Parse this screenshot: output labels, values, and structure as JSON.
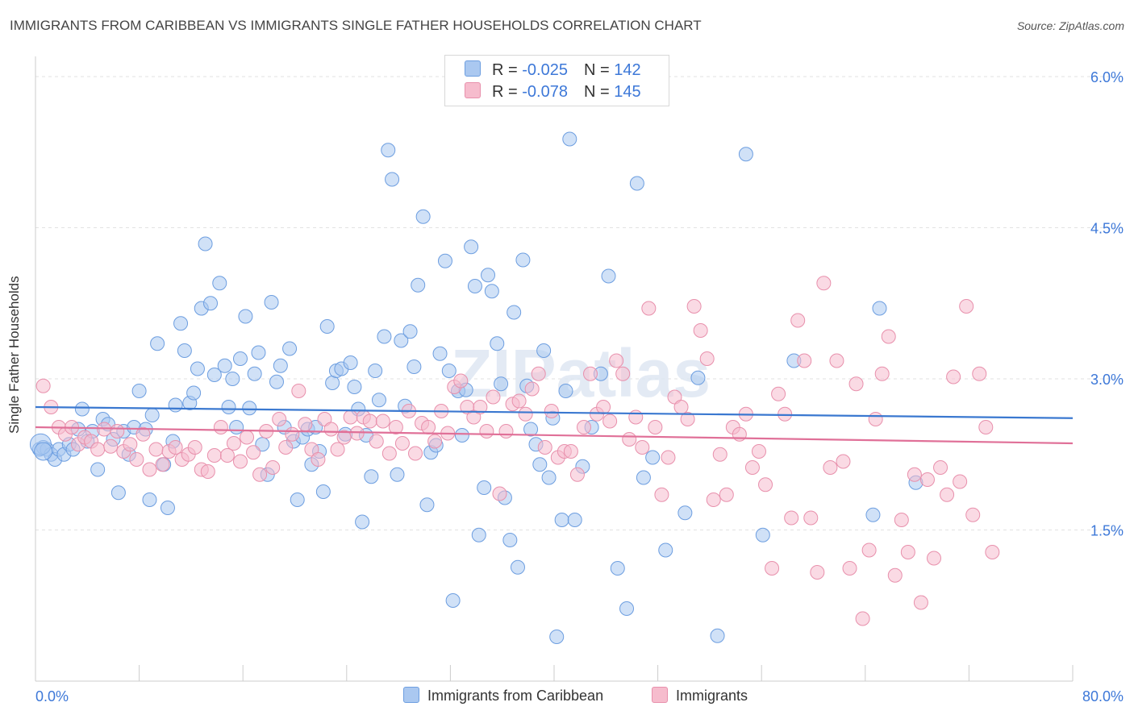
{
  "title": "IMMIGRANTS FROM CARIBBEAN VS IMMIGRANTS SINGLE FATHER HOUSEHOLDS CORRELATION CHART",
  "source": "Source: ZipAtlas.com",
  "watermark": "ZIPatlas",
  "legend_top": [
    {
      "r_label": "R = ",
      "r_value": "-0.025",
      "n_label": "N = ",
      "n_value": "142"
    },
    {
      "r_label": "R = ",
      "r_value": "-0.078",
      "n_label": "N = ",
      "n_value": "145"
    }
  ],
  "legend_bottom": [
    "Immigrants from Caribbean",
    "Immigrants"
  ],
  "colors": {
    "blue_fill": "#aac8f0",
    "blue_stroke": "#6d9ee0",
    "blue_line": "#3a78d0",
    "pink_fill": "#f6bccd",
    "pink_stroke": "#e890ac",
    "pink_line": "#e07098",
    "axis_text": "#3d78d8"
  },
  "chart_data": {
    "type": "scatter",
    "title": "IMMIGRANTS FROM CARIBBEAN VS IMMIGRANTS SINGLE FATHER HOUSEHOLDS CORRELATION CHART",
    "ylabel": "Single Father Households",
    "xlabel": "",
    "xlim": [
      0,
      80
    ],
    "ylim": [
      0,
      6.2
    ],
    "x_tick_labels": [
      "0.0%",
      "80.0%"
    ],
    "y_ticks": [
      {
        "value": 1.5,
        "label": "1.5%"
      },
      {
        "value": 3.0,
        "label": "3.0%"
      },
      {
        "value": 4.5,
        "label": "4.5%"
      },
      {
        "value": 6.0,
        "label": "6.0%"
      }
    ],
    "series": [
      {
        "name": "Immigrants from Caribbean",
        "trend": {
          "x0": 0,
          "y0": 2.72,
          "x1": 80,
          "y1": 2.61
        },
        "points": [
          [
            0.3,
            2.3
          ],
          [
            0.6,
            2.32
          ],
          [
            0.9,
            2.3
          ],
          [
            1.2,
            2.25
          ],
          [
            1.5,
            2.2
          ],
          [
            1.8,
            2.3
          ],
          [
            2.2,
            2.25
          ],
          [
            2.6,
            2.35
          ],
          [
            2.9,
            2.3
          ],
          [
            3.3,
            2.5
          ],
          [
            3.6,
            2.7
          ],
          [
            4.0,
            2.38
          ],
          [
            4.4,
            2.48
          ],
          [
            4.8,
            2.1
          ],
          [
            5.2,
            2.6
          ],
          [
            5.6,
            2.55
          ],
          [
            6.0,
            2.4
          ],
          [
            6.4,
            1.87
          ],
          [
            6.8,
            2.48
          ],
          [
            7.2,
            2.25
          ],
          [
            7.6,
            2.52
          ],
          [
            8.0,
            2.88
          ],
          [
            8.5,
            2.5
          ],
          [
            8.8,
            1.8
          ],
          [
            9.0,
            2.64
          ],
          [
            9.4,
            3.35
          ],
          [
            9.9,
            2.15
          ],
          [
            10.2,
            1.72
          ],
          [
            10.6,
            2.38
          ],
          [
            10.8,
            2.74
          ],
          [
            11.2,
            3.55
          ],
          [
            11.5,
            3.28
          ],
          [
            11.9,
            2.76
          ],
          [
            12.2,
            2.86
          ],
          [
            12.5,
            3.1
          ],
          [
            12.8,
            3.7
          ],
          [
            13.1,
            4.34
          ],
          [
            13.5,
            3.75
          ],
          [
            13.8,
            3.04
          ],
          [
            14.2,
            3.95
          ],
          [
            14.6,
            3.13
          ],
          [
            14.9,
            2.72
          ],
          [
            15.2,
            3.0
          ],
          [
            15.5,
            2.52
          ],
          [
            15.8,
            3.2
          ],
          [
            16.2,
            3.62
          ],
          [
            16.5,
            2.71
          ],
          [
            16.9,
            3.05
          ],
          [
            17.2,
            3.26
          ],
          [
            17.5,
            2.35
          ],
          [
            17.9,
            2.05
          ],
          [
            18.2,
            3.76
          ],
          [
            18.6,
            2.97
          ],
          [
            18.9,
            3.13
          ],
          [
            19.2,
            2.52
          ],
          [
            19.6,
            3.3
          ],
          [
            19.9,
            2.38
          ],
          [
            20.2,
            1.8
          ],
          [
            20.6,
            2.42
          ],
          [
            21.0,
            2.5
          ],
          [
            21.3,
            2.15
          ],
          [
            21.6,
            2.52
          ],
          [
            21.9,
            2.28
          ],
          [
            22.2,
            1.88
          ],
          [
            22.5,
            3.52
          ],
          [
            22.9,
            2.96
          ],
          [
            23.2,
            3.08
          ],
          [
            23.6,
            3.1
          ],
          [
            23.9,
            2.45
          ],
          [
            24.3,
            3.16
          ],
          [
            24.6,
            2.92
          ],
          [
            24.9,
            2.7
          ],
          [
            25.2,
            1.58
          ],
          [
            25.5,
            2.44
          ],
          [
            25.9,
            2.03
          ],
          [
            26.2,
            3.08
          ],
          [
            26.5,
            2.79
          ],
          [
            26.9,
            3.42
          ],
          [
            27.2,
            5.27
          ],
          [
            27.5,
            4.98
          ],
          [
            27.9,
            2.05
          ],
          [
            28.2,
            3.38
          ],
          [
            28.5,
            2.73
          ],
          [
            28.9,
            3.47
          ],
          [
            29.2,
            3.12
          ],
          [
            29.5,
            3.93
          ],
          [
            29.9,
            4.61
          ],
          [
            30.2,
            1.75
          ],
          [
            30.5,
            2.27
          ],
          [
            30.9,
            2.34
          ],
          [
            31.2,
            3.25
          ],
          [
            31.6,
            4.17
          ],
          [
            31.9,
            3.08
          ],
          [
            32.2,
            0.8
          ],
          [
            32.6,
            2.88
          ],
          [
            32.9,
            2.44
          ],
          [
            33.2,
            2.89
          ],
          [
            33.6,
            4.31
          ],
          [
            33.9,
            3.92
          ],
          [
            34.2,
            1.45
          ],
          [
            34.6,
            1.92
          ],
          [
            34.9,
            4.03
          ],
          [
            35.2,
            3.87
          ],
          [
            35.6,
            3.35
          ],
          [
            35.9,
            2.95
          ],
          [
            36.2,
            1.82
          ],
          [
            36.6,
            1.4
          ],
          [
            36.9,
            3.66
          ],
          [
            37.2,
            1.13
          ],
          [
            37.6,
            4.18
          ],
          [
            37.9,
            2.93
          ],
          [
            38.2,
            2.5
          ],
          [
            38.6,
            2.35
          ],
          [
            38.9,
            2.15
          ],
          [
            39.2,
            3.28
          ],
          [
            39.6,
            2.02
          ],
          [
            39.9,
            2.61
          ],
          [
            40.2,
            0.44
          ],
          [
            40.6,
            1.6
          ],
          [
            40.9,
            2.88
          ],
          [
            41.2,
            5.38
          ],
          [
            41.6,
            1.6
          ],
          [
            42.2,
            2.13
          ],
          [
            42.9,
            2.52
          ],
          [
            43.6,
            3.05
          ],
          [
            44.2,
            4.02
          ],
          [
            44.9,
            1.12
          ],
          [
            45.6,
            0.72
          ],
          [
            46.4,
            4.94
          ],
          [
            46.9,
            2.02
          ],
          [
            47.6,
            2.22
          ],
          [
            48.6,
            1.3
          ],
          [
            50.1,
            1.67
          ],
          [
            51.1,
            3.01
          ],
          [
            52.6,
            0.45
          ],
          [
            54.8,
            5.23
          ],
          [
            56.1,
            1.45
          ],
          [
            58.5,
            3.18
          ],
          [
            64.6,
            1.65
          ],
          [
            65.1,
            3.7
          ],
          [
            67.9,
            1.97
          ]
        ]
      },
      {
        "name": "Immigrants",
        "trend": {
          "x0": 0,
          "y0": 2.52,
          "x1": 80,
          "y1": 2.36
        },
        "points": [
          [
            0.6,
            2.93
          ],
          [
            1.2,
            2.72
          ],
          [
            1.8,
            2.52
          ],
          [
            2.3,
            2.45
          ],
          [
            2.8,
            2.52
          ],
          [
            3.3,
            2.35
          ],
          [
            3.8,
            2.42
          ],
          [
            4.3,
            2.38
          ],
          [
            4.8,
            2.3
          ],
          [
            5.3,
            2.5
          ],
          [
            5.8,
            2.33
          ],
          [
            6.3,
            2.48
          ],
          [
            6.8,
            2.28
          ],
          [
            7.3,
            2.35
          ],
          [
            7.8,
            2.2
          ],
          [
            8.3,
            2.45
          ],
          [
            8.8,
            2.1
          ],
          [
            9.3,
            2.3
          ],
          [
            9.8,
            2.15
          ],
          [
            10.3,
            2.28
          ],
          [
            10.8,
            2.32
          ],
          [
            11.3,
            2.2
          ],
          [
            11.8,
            2.25
          ],
          [
            12.3,
            2.32
          ],
          [
            12.8,
            2.1
          ],
          [
            13.3,
            2.08
          ],
          [
            13.8,
            2.24
          ],
          [
            14.3,
            2.52
          ],
          [
            14.8,
            2.24
          ],
          [
            15.3,
            2.36
          ],
          [
            15.8,
            2.18
          ],
          [
            16.3,
            2.42
          ],
          [
            16.8,
            2.27
          ],
          [
            17.3,
            2.05
          ],
          [
            17.8,
            2.48
          ],
          [
            18.3,
            2.12
          ],
          [
            18.8,
            2.6
          ],
          [
            19.3,
            2.32
          ],
          [
            19.8,
            2.45
          ],
          [
            20.3,
            2.88
          ],
          [
            20.8,
            2.55
          ],
          [
            21.3,
            2.3
          ],
          [
            21.8,
            2.2
          ],
          [
            22.3,
            2.6
          ],
          [
            22.8,
            2.5
          ],
          [
            23.3,
            2.3
          ],
          [
            23.8,
            2.42
          ],
          [
            24.3,
            2.62
          ],
          [
            24.8,
            2.46
          ],
          [
            25.3,
            2.62
          ],
          [
            25.8,
            2.58
          ],
          [
            26.3,
            2.38
          ],
          [
            26.8,
            2.58
          ],
          [
            27.3,
            2.26
          ],
          [
            27.8,
            2.52
          ],
          [
            28.3,
            2.36
          ],
          [
            28.8,
            2.68
          ],
          [
            29.3,
            2.26
          ],
          [
            29.8,
            2.56
          ],
          [
            30.3,
            2.52
          ],
          [
            30.8,
            2.38
          ],
          [
            31.3,
            2.68
          ],
          [
            31.8,
            2.46
          ],
          [
            32.3,
            2.92
          ],
          [
            32.8,
            2.98
          ],
          [
            33.3,
            2.72
          ],
          [
            33.8,
            2.62
          ],
          [
            34.3,
            2.72
          ],
          [
            34.8,
            2.48
          ],
          [
            35.3,
            2.82
          ],
          [
            35.8,
            1.86
          ],
          [
            36.3,
            2.48
          ],
          [
            36.8,
            2.75
          ],
          [
            37.3,
            2.78
          ],
          [
            37.8,
            2.65
          ],
          [
            38.3,
            2.9
          ],
          [
            38.8,
            3.05
          ],
          [
            39.3,
            2.32
          ],
          [
            39.8,
            2.68
          ],
          [
            40.3,
            2.22
          ],
          [
            40.8,
            2.28
          ],
          [
            41.3,
            2.28
          ],
          [
            41.8,
            2.05
          ],
          [
            42.3,
            2.52
          ],
          [
            42.8,
            3.05
          ],
          [
            43.3,
            2.65
          ],
          [
            43.8,
            2.72
          ],
          [
            44.3,
            2.58
          ],
          [
            44.8,
            3.18
          ],
          [
            45.3,
            3.05
          ],
          [
            45.8,
            2.4
          ],
          [
            46.3,
            2.62
          ],
          [
            46.8,
            2.32
          ],
          [
            47.3,
            3.7
          ],
          [
            47.8,
            2.52
          ],
          [
            48.3,
            1.85
          ],
          [
            48.8,
            2.22
          ],
          [
            49.3,
            2.82
          ],
          [
            49.8,
            2.72
          ],
          [
            50.3,
            2.6
          ],
          [
            50.8,
            3.72
          ],
          [
            51.3,
            3.48
          ],
          [
            51.8,
            3.2
          ],
          [
            52.3,
            1.8
          ],
          [
            52.8,
            2.25
          ],
          [
            53.3,
            1.85
          ],
          [
            53.8,
            2.52
          ],
          [
            54.3,
            2.45
          ],
          [
            54.8,
            2.65
          ],
          [
            55.3,
            2.12
          ],
          [
            55.8,
            2.28
          ],
          [
            56.3,
            1.95
          ],
          [
            56.8,
            1.12
          ],
          [
            57.3,
            2.85
          ],
          [
            57.8,
            2.65
          ],
          [
            58.3,
            1.62
          ],
          [
            58.8,
            3.58
          ],
          [
            59.3,
            3.18
          ],
          [
            59.8,
            1.62
          ],
          [
            60.3,
            1.08
          ],
          [
            60.8,
            3.95
          ],
          [
            61.3,
            2.12
          ],
          [
            61.8,
            3.18
          ],
          [
            62.3,
            2.18
          ],
          [
            62.8,
            1.12
          ],
          [
            63.3,
            2.95
          ],
          [
            63.8,
            0.62
          ],
          [
            64.3,
            1.3
          ],
          [
            64.8,
            2.6
          ],
          [
            65.3,
            3.05
          ],
          [
            65.8,
            3.42
          ],
          [
            66.3,
            1.05
          ],
          [
            66.8,
            1.6
          ],
          [
            67.3,
            1.28
          ],
          [
            67.8,
            2.05
          ],
          [
            68.3,
            0.78
          ],
          [
            68.8,
            2.0
          ],
          [
            69.3,
            1.22
          ],
          [
            69.8,
            2.12
          ],
          [
            70.3,
            1.85
          ],
          [
            70.8,
            3.02
          ],
          [
            71.3,
            1.98
          ],
          [
            71.8,
            3.72
          ],
          [
            72.3,
            1.65
          ],
          [
            72.8,
            3.05
          ],
          [
            73.3,
            2.52
          ],
          [
            73.8,
            1.28
          ]
        ]
      }
    ]
  }
}
